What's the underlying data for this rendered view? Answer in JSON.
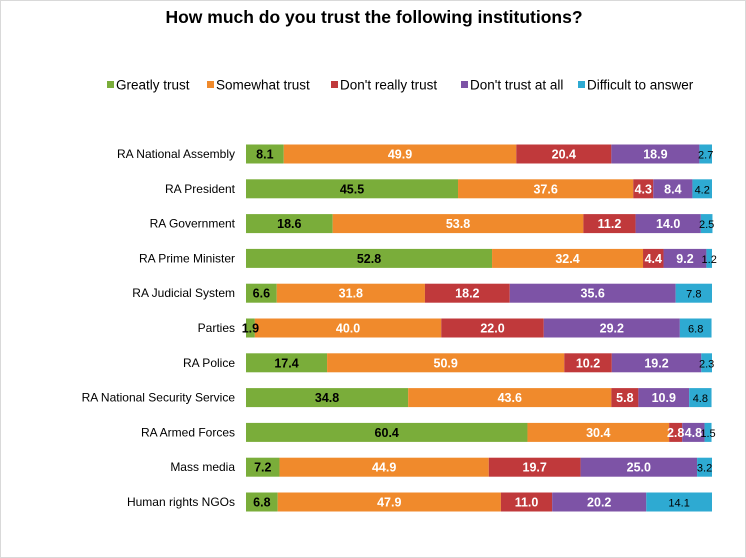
{
  "chart_data": {
    "type": "bar",
    "orientation": "horizontal",
    "stacked": true,
    "title": "How much do you trust the following institutions?",
    "xlabel": "",
    "ylabel": "",
    "xlim": [
      0,
      100
    ],
    "grid": false,
    "legend_position": "top",
    "categories": [
      "RA National Assembly",
      "RA President",
      "RA Government",
      "RA Prime Minister",
      "RA Judicial System",
      "Parties",
      "RA Police",
      "RA National Security Service",
      "RA Armed Forces",
      "Mass media",
      "Human rights NGOs"
    ],
    "series": [
      {
        "name": "Greatly trust",
        "color": "#7aad3a",
        "values": [
          8.1,
          45.5,
          18.6,
          52.8,
          6.6,
          1.9,
          17.4,
          34.8,
          60.4,
          7.2,
          6.8
        ],
        "labels": [
          "8.1",
          "45.5",
          "18.6",
          "52.8",
          "6.6",
          "1.9",
          "17.4",
          "34.8",
          "60.4",
          "7.2",
          "6.8"
        ]
      },
      {
        "name": "Somewhat trust",
        "color": "#f08a2c",
        "values": [
          49.9,
          37.6,
          53.8,
          32.4,
          31.8,
          40.0,
          50.9,
          43.6,
          30.4,
          44.9,
          47.9
        ],
        "labels": [
          "49.9",
          "37.6",
          "53.8",
          "32.4",
          "31.8",
          "40.0",
          "50.9",
          "43.6",
          "30.4",
          "44.9",
          "47.9"
        ]
      },
      {
        "name": "Don't really trust",
        "color": "#c0393b",
        "values": [
          20.4,
          4.3,
          11.2,
          4.4,
          18.2,
          22.0,
          10.2,
          5.8,
          2.8,
          19.7,
          11.0
        ],
        "labels": [
          "20.4",
          "4.3",
          "11.2",
          "4.4",
          "18.2",
          "22.0",
          "10.2",
          "5.8",
          "2.8",
          "19.7",
          "11.0"
        ]
      },
      {
        "name": "Don't trust at all",
        "color": "#7d53a6",
        "values": [
          18.9,
          8.4,
          14.0,
          9.2,
          35.6,
          29.2,
          19.2,
          10.9,
          4.8,
          25.0,
          20.2
        ],
        "labels": [
          "18.9",
          "8.4",
          "14.0",
          "9.2",
          "35.6",
          "29.2",
          "19.2",
          "10.9",
          "4.8",
          "25.0",
          "20.2"
        ]
      },
      {
        "name": "Difficult to answer",
        "color": "#2eaad2",
        "values": [
          2.7,
          4.2,
          2.5,
          1.2,
          7.8,
          6.8,
          2.3,
          4.8,
          1.5,
          3.2,
          14.1
        ],
        "labels": [
          "2.7",
          "4.2",
          "2.5",
          "1.2",
          "7.8",
          "6.8",
          "2.3",
          "4.8",
          "1.5",
          "3.2",
          "14.1"
        ]
      }
    ]
  }
}
